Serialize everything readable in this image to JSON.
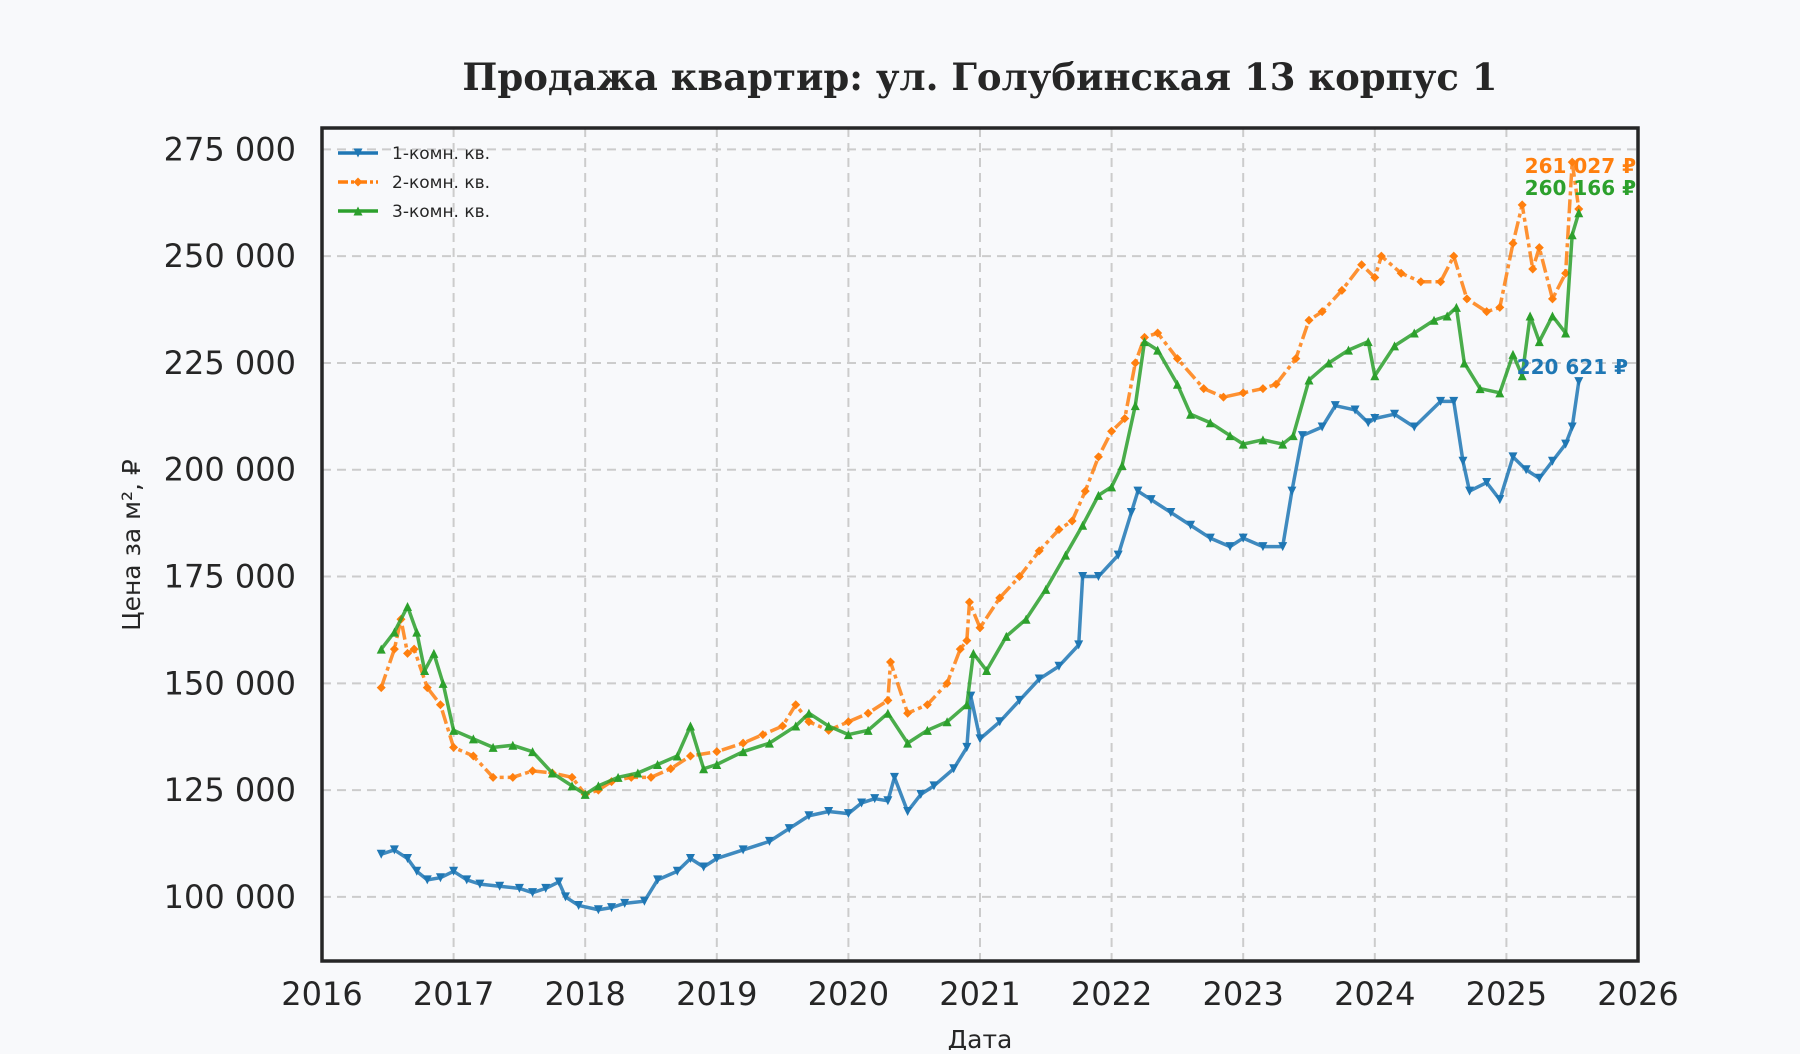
{
  "chart_data": {
    "type": "line",
    "title": "Продажа квартир: ул. Голубинская 13 корпус 1",
    "xlabel": "Дата",
    "ylabel": "Цена за м², ₽",
    "xlim": [
      2016,
      2026
    ],
    "ylim": [
      85000,
      280000
    ],
    "x_ticks": [
      2016,
      2017,
      2018,
      2019,
      2020,
      2021,
      2022,
      2023,
      2024,
      2025,
      2026
    ],
    "x_tick_labels": [
      "2016",
      "2017",
      "2018",
      "2019",
      "2020",
      "2021",
      "2022",
      "2023",
      "2024",
      "2025",
      "2026"
    ],
    "y_ticks": [
      100000,
      125000,
      150000,
      175000,
      200000,
      225000,
      250000,
      275000
    ],
    "y_tick_labels": [
      "100 000",
      "125 000",
      "150 000",
      "175 000",
      "200 000",
      "225 000",
      "250 000",
      "275 000"
    ],
    "grid": true,
    "legend_position": "top-left",
    "series": [
      {
        "name": "1-комн. кв.",
        "color": "#1f77b4",
        "marker": "triangle-down",
        "end_label": "220 621 ₽",
        "x": [
          2016.45,
          2016.55,
          2016.65,
          2016.72,
          2016.8,
          2016.9,
          2017.0,
          2017.1,
          2017.2,
          2017.35,
          2017.5,
          2017.6,
          2017.7,
          2017.8,
          2017.85,
          2017.95,
          2018.1,
          2018.2,
          2018.3,
          2018.45,
          2018.55,
          2018.7,
          2018.8,
          2018.9,
          2019.0,
          2019.2,
          2019.4,
          2019.55,
          2019.7,
          2019.85,
          2020.0,
          2020.1,
          2020.2,
          2020.3,
          2020.35,
          2020.45,
          2020.55,
          2020.65,
          2020.8,
          2020.9,
          2020.93,
          2021.0,
          2021.15,
          2021.3,
          2021.45,
          2021.6,
          2021.75,
          2021.78,
          2021.9,
          2022.05,
          2022.15,
          2022.2,
          2022.3,
          2022.45,
          2022.6,
          2022.75,
          2022.9,
          2023.0,
          2023.15,
          2023.3,
          2023.37,
          2023.45,
          2023.6,
          2023.7,
          2023.85,
          2023.95,
          2024.0,
          2024.15,
          2024.3,
          2024.5,
          2024.6,
          2024.67,
          2024.72,
          2024.85,
          2024.95,
          2025.05,
          2025.15,
          2025.25,
          2025.35,
          2025.45,
          2025.5,
          2025.55
        ],
        "y": [
          110000,
          111000,
          109000,
          106000,
          104000,
          104500,
          106000,
          104000,
          103000,
          102500,
          102000,
          101000,
          102000,
          103500,
          100000,
          98000,
          97000,
          97500,
          98500,
          99000,
          104000,
          106000,
          109000,
          107000,
          109000,
          111000,
          113000,
          116000,
          119000,
          120000,
          119500,
          122000,
          123000,
          122500,
          128000,
          120000,
          124000,
          126000,
          130000,
          135000,
          147000,
          137000,
          141000,
          146000,
          151000,
          154000,
          159000,
          175000,
          175000,
          180000,
          190000,
          195000,
          193000,
          190000,
          187000,
          184000,
          182000,
          184000,
          182000,
          182000,
          195000,
          208000,
          210000,
          215000,
          214000,
          211000,
          212000,
          213000,
          210000,
          216000,
          216000,
          202000,
          195000,
          197000,
          193000,
          203000,
          200000,
          198000,
          202000,
          206000,
          210000,
          220621
        ]
      },
      {
        "name": "2-комн. кв.",
        "color": "#ff7f0e",
        "marker": "diamond",
        "end_label": "261 027 ₽",
        "x": [
          2016.45,
          2016.55,
          2016.6,
          2016.65,
          2016.7,
          2016.8,
          2016.9,
          2017.0,
          2017.15,
          2017.3,
          2017.45,
          2017.6,
          2017.75,
          2017.9,
          2018.0,
          2018.1,
          2018.2,
          2018.35,
          2018.5,
          2018.65,
          2018.8,
          2019.0,
          2019.2,
          2019.35,
          2019.5,
          2019.6,
          2019.7,
          2019.85,
          2020.0,
          2020.15,
          2020.3,
          2020.32,
          2020.45,
          2020.6,
          2020.75,
          2020.85,
          2020.9,
          2020.92,
          2021.0,
          2021.15,
          2021.3,
          2021.45,
          2021.6,
          2021.7,
          2021.8,
          2021.9,
          2022.0,
          2022.1,
          2022.18,
          2022.25,
          2022.35,
          2022.5,
          2022.7,
          2022.85,
          2023.0,
          2023.15,
          2023.25,
          2023.4,
          2023.5,
          2023.6,
          2023.75,
          2023.9,
          2024.0,
          2024.05,
          2024.2,
          2024.35,
          2024.5,
          2024.6,
          2024.7,
          2024.85,
          2024.95,
          2025.05,
          2025.12,
          2025.2,
          2025.25,
          2025.35,
          2025.45,
          2025.5,
          2025.55
        ],
        "y": [
          149000,
          158000,
          165000,
          157000,
          158000,
          149000,
          145000,
          135000,
          133000,
          128000,
          128000,
          129500,
          129000,
          128000,
          124000,
          125000,
          127000,
          128000,
          128000,
          130000,
          133000,
          134000,
          136000,
          138000,
          140000,
          145000,
          141000,
          139000,
          141000,
          143000,
          146000,
          155000,
          143000,
          145000,
          150000,
          158000,
          160000,
          169000,
          163000,
          170000,
          175000,
          181000,
          186000,
          188000,
          195000,
          203000,
          209000,
          212000,
          225000,
          231000,
          232000,
          226000,
          219000,
          217000,
          218000,
          219000,
          220000,
          226000,
          235000,
          237000,
          242000,
          248000,
          245000,
          250000,
          246000,
          244000,
          244000,
          250000,
          240000,
          237000,
          238000,
          253000,
          262000,
          247000,
          252000,
          240000,
          246000,
          272000,
          261027
        ]
      },
      {
        "name": "3-комн. кв.",
        "color": "#2ca02c",
        "marker": "triangle-up",
        "end_label": "260 166 ₽",
        "x": [
          2016.45,
          2016.55,
          2016.65,
          2016.72,
          2016.78,
          2016.85,
          2016.92,
          2017.0,
          2017.15,
          2017.3,
          2017.45,
          2017.6,
          2017.75,
          2017.9,
          2018.0,
          2018.1,
          2018.25,
          2018.4,
          2018.55,
          2018.7,
          2018.8,
          2018.9,
          2019.0,
          2019.2,
          2019.4,
          2019.6,
          2019.7,
          2019.85,
          2020.0,
          2020.15,
          2020.3,
          2020.45,
          2020.6,
          2020.75,
          2020.9,
          2020.95,
          2021.05,
          2021.2,
          2021.35,
          2021.5,
          2021.65,
          2021.78,
          2021.9,
          2022.0,
          2022.08,
          2022.18,
          2022.25,
          2022.35,
          2022.5,
          2022.6,
          2022.75,
          2022.9,
          2023.0,
          2023.15,
          2023.3,
          2023.38,
          2023.5,
          2023.65,
          2023.8,
          2023.95,
          2024.0,
          2024.15,
          2024.3,
          2024.45,
          2024.55,
          2024.62,
          2024.68,
          2024.8,
          2024.95,
          2025.05,
          2025.12,
          2025.18,
          2025.25,
          2025.35,
          2025.45,
          2025.5,
          2025.55
        ],
        "y": [
          158000,
          162000,
          168000,
          162000,
          153000,
          157000,
          150000,
          139000,
          137000,
          135000,
          135500,
          134000,
          129000,
          126000,
          124000,
          126000,
          128000,
          129000,
          131000,
          133000,
          140000,
          130000,
          131000,
          134000,
          136000,
          140000,
          143000,
          140000,
          138000,
          139000,
          143000,
          136000,
          139000,
          141000,
          145000,
          157000,
          153000,
          161000,
          165000,
          172000,
          180000,
          187000,
          194000,
          196000,
          201000,
          215000,
          230000,
          228000,
          220000,
          213000,
          211000,
          208000,
          206000,
          207000,
          206000,
          208000,
          221000,
          225000,
          228000,
          230000,
          222000,
          229000,
          232000,
          235000,
          236000,
          238000,
          225000,
          219000,
          218000,
          227000,
          222000,
          236000,
          230000,
          236000,
          232000,
          255000,
          260166
        ]
      }
    ]
  }
}
